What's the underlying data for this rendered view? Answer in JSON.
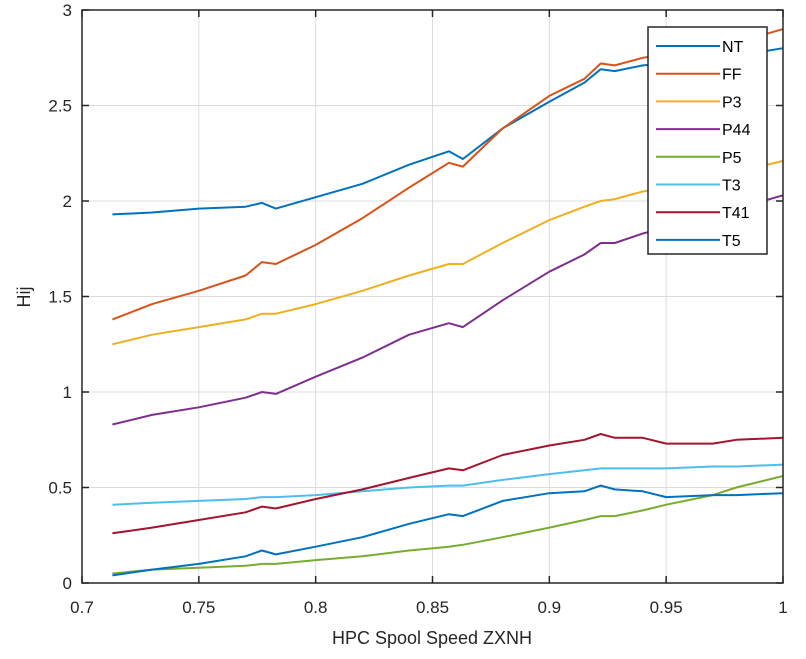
{
  "chart_data": {
    "type": "line",
    "title": "",
    "xlabel": "HPC Spool Speed ZXNH",
    "ylabel": "Hij",
    "xlim": [
      0.7,
      1.0
    ],
    "ylim": [
      0,
      3
    ],
    "grid": true,
    "legend_position": "northeast (inside)",
    "x_ticks": [
      "0.7",
      "0.75",
      "0.8",
      "0.85",
      "0.9",
      "0.95",
      "1"
    ],
    "y_ticks": [
      "0",
      "0.5",
      "1",
      "1.5",
      "2",
      "2.5",
      "3"
    ],
    "x": [
      0.713,
      0.73,
      0.75,
      0.77,
      0.777,
      0.783,
      0.8,
      0.82,
      0.84,
      0.857,
      0.863,
      0.88,
      0.9,
      0.915,
      0.922,
      0.928,
      0.94,
      0.95,
      0.97,
      0.98,
      1.0
    ],
    "series": [
      {
        "name": "NT",
        "color": "#0072BD",
        "values": [
          1.93,
          1.94,
          1.96,
          1.97,
          1.99,
          1.96,
          2.02,
          2.09,
          2.19,
          2.26,
          2.22,
          2.38,
          2.52,
          2.62,
          2.69,
          2.68,
          2.71,
          2.72,
          2.74,
          2.76,
          2.8
        ]
      },
      {
        "name": "FF",
        "color": "#D95319",
        "values": [
          1.38,
          1.46,
          1.53,
          1.61,
          1.68,
          1.67,
          1.77,
          1.91,
          2.07,
          2.2,
          2.18,
          2.38,
          2.55,
          2.64,
          2.72,
          2.71,
          2.75,
          2.77,
          2.8,
          2.83,
          2.9
        ]
      },
      {
        "name": "P3",
        "color": "#EDB120",
        "values": [
          1.25,
          1.3,
          1.34,
          1.38,
          1.41,
          1.41,
          1.46,
          1.53,
          1.61,
          1.67,
          1.67,
          1.78,
          1.9,
          1.97,
          2.0,
          2.01,
          2.05,
          2.07,
          2.12,
          2.15,
          2.21
        ]
      },
      {
        "name": "P44",
        "color": "#7E2F8E",
        "values": [
          0.83,
          0.88,
          0.92,
          0.97,
          1.0,
          0.99,
          1.08,
          1.18,
          1.3,
          1.36,
          1.34,
          1.48,
          1.63,
          1.72,
          1.78,
          1.78,
          1.83,
          1.86,
          1.92,
          1.96,
          2.03
        ]
      },
      {
        "name": "P5",
        "color": "#77AC30",
        "values": [
          0.05,
          0.07,
          0.08,
          0.09,
          0.1,
          0.1,
          0.12,
          0.14,
          0.17,
          0.19,
          0.2,
          0.24,
          0.29,
          0.33,
          0.35,
          0.35,
          0.38,
          0.41,
          0.46,
          0.5,
          0.56
        ]
      },
      {
        "name": "T3",
        "color": "#4DBEEE",
        "values": [
          0.41,
          0.42,
          0.43,
          0.44,
          0.45,
          0.45,
          0.46,
          0.48,
          0.5,
          0.51,
          0.51,
          0.54,
          0.57,
          0.59,
          0.6,
          0.6,
          0.6,
          0.6,
          0.61,
          0.61,
          0.62
        ]
      },
      {
        "name": "T41",
        "color": "#A2142F",
        "values": [
          0.26,
          0.29,
          0.33,
          0.37,
          0.4,
          0.39,
          0.44,
          0.49,
          0.55,
          0.6,
          0.59,
          0.67,
          0.72,
          0.75,
          0.78,
          0.76,
          0.76,
          0.73,
          0.73,
          0.75,
          0.76
        ]
      },
      {
        "name": "T5",
        "color": "#0072BD",
        "values": [
          0.04,
          0.07,
          0.1,
          0.14,
          0.17,
          0.15,
          0.19,
          0.24,
          0.31,
          0.36,
          0.35,
          0.43,
          0.47,
          0.48,
          0.51,
          0.49,
          0.48,
          0.45,
          0.46,
          0.46,
          0.47
        ]
      }
    ]
  },
  "legend": {
    "items": [
      {
        "label": "NT",
        "color": "#0072BD"
      },
      {
        "label": "FF",
        "color": "#D95319"
      },
      {
        "label": "P3",
        "color": "#EDB120"
      },
      {
        "label": "P44",
        "color": "#7E2F8E"
      },
      {
        "label": "P5",
        "color": "#77AC30"
      },
      {
        "label": "T3",
        "color": "#4DBEEE"
      },
      {
        "label": "T41",
        "color": "#A2142F"
      },
      {
        "label": "T5",
        "color": "#0072BD"
      }
    ]
  },
  "axes": {
    "xlabel": "HPC Spool Speed ZXNH",
    "ylabel": "Hij"
  }
}
